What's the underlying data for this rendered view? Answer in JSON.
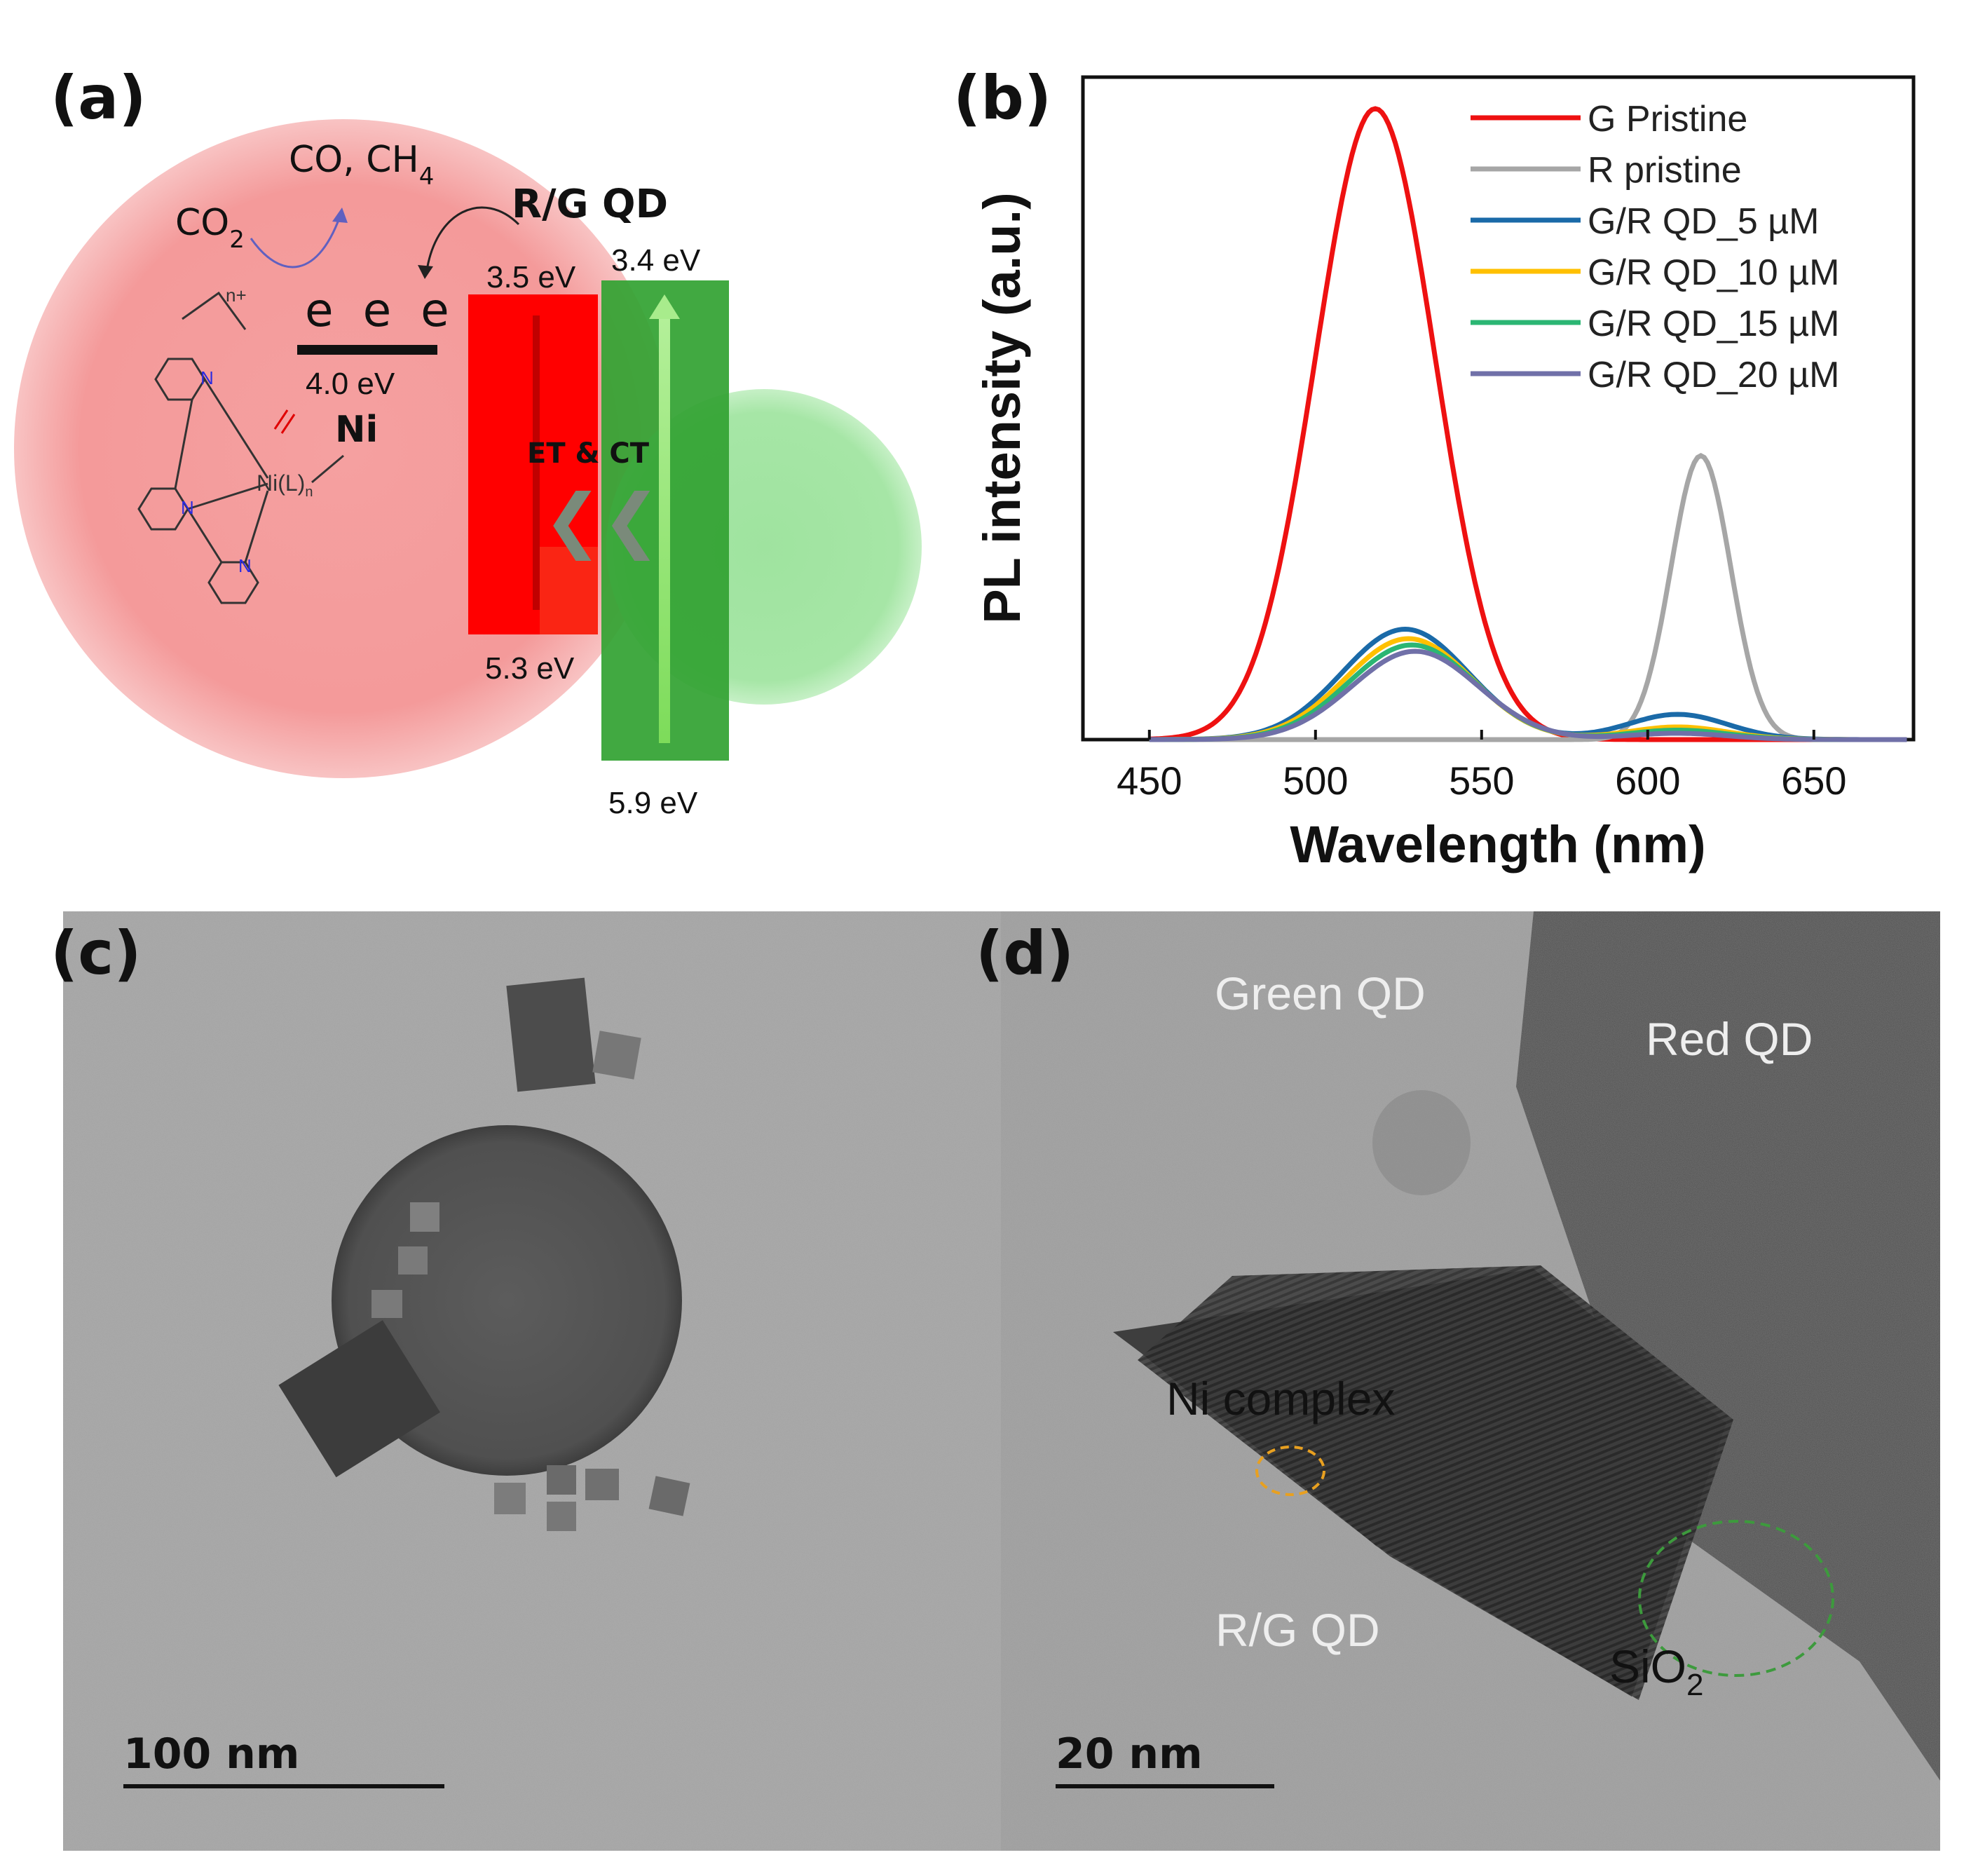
{
  "panels": {
    "a": "(a)",
    "b": "(b)",
    "c": "(c)",
    "d": "(d)"
  },
  "schematic": {
    "co2": "CO",
    "co2_sub": "2",
    "products_prefix": "CO, CH",
    "products_sub": "4",
    "qd_title": "R/G QD",
    "electrons": "e  e  e",
    "level_ni": "4.0 eV",
    "ni_label": "Ni",
    "n_plus": "n+",
    "nitrogen": "N",
    "ni_center": "Ni(L)",
    "ni_center_sub": "n",
    "red_cb": "3.5 eV",
    "green_cb": "3.4 eV",
    "red_vb": "5.3 eV",
    "green_vb": "5.9 eV",
    "transfer": "ET & CT",
    "chevron": "❮❮"
  },
  "chart_data": {
    "type": "line",
    "title": "",
    "xlabel": "Wavelength (nm)",
    "ylabel": "PL intensity (a.u.)",
    "xlim": [
      430,
      680
    ],
    "ylim": [
      0,
      1.05
    ],
    "xticks": [
      450,
      500,
      550,
      600,
      650
    ],
    "legend_position": "top-right",
    "series": [
      {
        "name": "G Pristine",
        "color": "#ee1111",
        "peaks": [
          {
            "center": 518,
            "width": 18,
            "height": 1.0
          }
        ]
      },
      {
        "name": "R pristine",
        "color": "#a6a6a6",
        "peaks": [
          {
            "center": 616,
            "width": 9,
            "height": 0.45
          }
        ]
      },
      {
        "name": "G/R QD_5 µM",
        "color": "#1a6aa8",
        "peaks": [
          {
            "center": 527,
            "width": 19,
            "height": 0.175
          },
          {
            "center": 609,
            "width": 15,
            "height": 0.04
          }
        ]
      },
      {
        "name": "G/R QD_10 µM",
        "color": "#ffc000",
        "peaks": [
          {
            "center": 528,
            "width": 19,
            "height": 0.16
          },
          {
            "center": 609,
            "width": 15,
            "height": 0.02
          }
        ]
      },
      {
        "name": "G/R QD_15 µM",
        "color": "#2bb673",
        "peaks": [
          {
            "center": 529,
            "width": 19,
            "height": 0.15
          },
          {
            "center": 609,
            "width": 15,
            "height": 0.015
          }
        ]
      },
      {
        "name": "G/R QD_20 µM",
        "color": "#7070a8",
        "peaks": [
          {
            "center": 530,
            "width": 19,
            "height": 0.14
          },
          {
            "center": 609,
            "width": 15,
            "height": 0.01
          }
        ]
      }
    ]
  },
  "tem_c": {
    "scale_bar": "100 nm"
  },
  "tem_d": {
    "green_qd": "Green QD",
    "red_qd": "Red QD",
    "ni_complex": "Ni complex",
    "rg_qd": "R/G QD",
    "sio2": "SiO",
    "sio2_sub": "2",
    "scale_bar": "20 nm"
  },
  "colors": {
    "red_band": "#ff0000",
    "green_band": "#2aa02a",
    "ni_circle": "#e88f22",
    "sio2_circle": "#3d9a3d"
  }
}
